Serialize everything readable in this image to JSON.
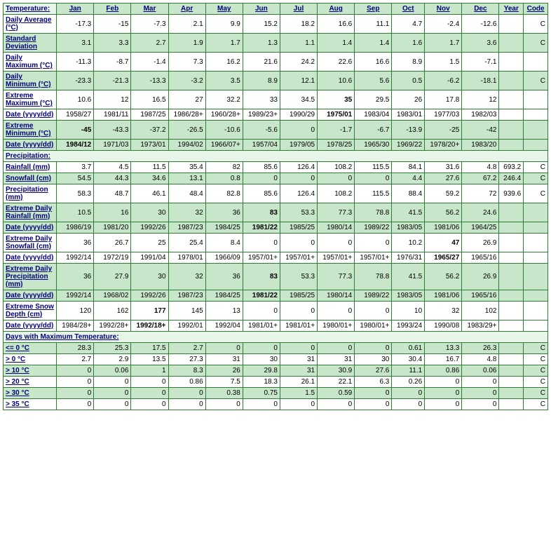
{
  "colors": {
    "border": "#2e7d32",
    "green_bg": "#c8e6c9",
    "light_green": "#e8f5e9",
    "navy": "#000080",
    "purple": "#800080"
  },
  "headers": [
    "Jan",
    "Feb",
    "Mar",
    "Apr",
    "May",
    "Jun",
    "Jul",
    "Aug",
    "Sep",
    "Oct",
    "Nov",
    "Dec",
    "Year",
    "Code"
  ],
  "section_temp": "Temperature:",
  "section_precip": "Precipitation:",
  "section_maxtemp": "Days with Maximum Temperature:",
  "rows": [
    {
      "key": "r0",
      "label": "Daily Average (°C)",
      "cls": "whiterow",
      "vals": [
        "-17.3",
        "-15",
        "-7.3",
        "2.1",
        "9.9",
        "15.2",
        "18.2",
        "16.6",
        "11.1",
        "4.7",
        "-2.4",
        "-12.6",
        "",
        "C"
      ]
    },
    {
      "key": "r1",
      "label": "Standard Deviation",
      "cls": "greenrow",
      "vals": [
        "3.1",
        "3.3",
        "2.7",
        "1.9",
        "1.7",
        "1.3",
        "1.1",
        "1.4",
        "1.4",
        "1.6",
        "1.7",
        "3.6",
        "",
        "C"
      ]
    },
    {
      "key": "r2",
      "label": "Daily Maximum (°C)",
      "cls": "whiterow",
      "vals": [
        "-11.3",
        "-8.7",
        "-1.4",
        "7.3",
        "16.2",
        "21.6",
        "24.2",
        "22.6",
        "16.6",
        "8.9",
        "1.5",
        "-7.1",
        "",
        ""
      ]
    },
    {
      "key": "r3",
      "label": "Daily Minimum (°C)",
      "cls": "greenrow",
      "vals": [
        "-23.3",
        "-21.3",
        "-13.3",
        "-3.2",
        "3.5",
        "8.9",
        "12.1",
        "10.6",
        "5.6",
        "0.5",
        "-6.2",
        "-18.1",
        "",
        "C"
      ]
    },
    {
      "key": "r4",
      "label": "Extreme Maximum (°C)",
      "cls": "whiterow",
      "vals": [
        "10.6",
        "12",
        "16.5",
        "27",
        "32.2",
        "33",
        "34.5",
        "35",
        "29.5",
        "26",
        "17.8",
        "12",
        "",
        ""
      ],
      "bold": [
        7
      ]
    },
    {
      "key": "r5",
      "label": "Date (yyyy/dd)",
      "cls": "whiterow",
      "vals": [
        "1958/27",
        "1981/11",
        "1987/25",
        "1986/28+",
        "1960/28+",
        "1989/23+",
        "1990/29",
        "1975/01",
        "1983/04",
        "1983/01",
        "1977/03",
        "1982/03",
        "",
        ""
      ],
      "bold": [
        7
      ]
    },
    {
      "key": "r6",
      "label": "Extreme Minimum (°C)",
      "cls": "greenrow",
      "vals": [
        "-45",
        "-43.3",
        "-37.2",
        "-26.5",
        "-10.6",
        "-5.6",
        "0",
        "-1.7",
        "-6.7",
        "-13.9",
        "-25",
        "-42",
        "",
        ""
      ],
      "bold": [
        0
      ]
    },
    {
      "key": "r7",
      "label": "Date (yyyy/dd)",
      "cls": "greenrow",
      "vals": [
        "1984/12",
        "1971/03",
        "1973/01",
        "1994/02",
        "1966/07+",
        "1957/04",
        "1979/05",
        "1978/25",
        "1965/30",
        "1969/22",
        "1978/20+",
        "1983/20",
        "",
        ""
      ],
      "bold": [
        0
      ]
    }
  ],
  "precip_rows": [
    {
      "key": "p0",
      "label": "Rainfall (mm)",
      "cls": "whiterow",
      "vals": [
        "3.7",
        "4.5",
        "11.5",
        "35.4",
        "82",
        "85.6",
        "126.4",
        "108.2",
        "115.5",
        "84.1",
        "31.6",
        "4.8",
        "693.2",
        "C"
      ]
    },
    {
      "key": "p1",
      "label": "Snowfall (cm)",
      "cls": "greenrow",
      "vals": [
        "54.5",
        "44.3",
        "34.6",
        "13.1",
        "0.8",
        "0",
        "0",
        "0",
        "0",
        "4.4",
        "27.6",
        "67.2",
        "246.4",
        "C"
      ]
    },
    {
      "key": "p2",
      "label": "Precipitation (mm)",
      "cls": "whiterow",
      "vals": [
        "58.3",
        "48.7",
        "46.1",
        "48.4",
        "82.8",
        "85.6",
        "126.4",
        "108.2",
        "115.5",
        "88.4",
        "59.2",
        "72",
        "939.6",
        "C"
      ]
    },
    {
      "key": "p3",
      "label": "Extreme Daily Rainfall (mm)",
      "cls": "greenrow",
      "vals": [
        "10.5",
        "16",
        "30",
        "32",
        "36",
        "83",
        "53.3",
        "77.3",
        "78.8",
        "41.5",
        "56.2",
        "24.6",
        "",
        ""
      ],
      "bold": [
        5
      ]
    },
    {
      "key": "p4",
      "label": "Date (yyyy/dd)",
      "cls": "greenrow",
      "vals": [
        "1986/19",
        "1981/20",
        "1992/26",
        "1987/23",
        "1984/25",
        "1981/22",
        "1985/25",
        "1980/14",
        "1989/22",
        "1983/05",
        "1981/06",
        "1964/25",
        "",
        ""
      ],
      "bold": [
        5
      ]
    },
    {
      "key": "p5",
      "label": "Extreme Daily Snowfall (cm)",
      "cls": "whiterow",
      "vals": [
        "36",
        "26.7",
        "25",
        "25.4",
        "8.4",
        "0",
        "0",
        "0",
        "0",
        "10.2",
        "47",
        "26.9",
        "",
        ""
      ],
      "bold": [
        10
      ]
    },
    {
      "key": "p6",
      "label": "Date (yyyy/dd)",
      "cls": "whiterow",
      "vals": [
        "1992/14",
        "1972/19",
        "1991/04",
        "1978/01",
        "1966/09",
        "1957/01+",
        "1957/01+",
        "1957/01+",
        "1957/01+",
        "1976/31",
        "1965/27",
        "1965/16",
        "",
        ""
      ],
      "bold": [
        10
      ]
    },
    {
      "key": "p7",
      "label": "Extreme Daily Precipitation (mm)",
      "cls": "greenrow",
      "vals": [
        "36",
        "27.9",
        "30",
        "32",
        "36",
        "83",
        "53.3",
        "77.3",
        "78.8",
        "41.5",
        "56.2",
        "26.9",
        "",
        ""
      ],
      "bold": [
        5
      ]
    },
    {
      "key": "p8",
      "label": "Date (yyyy/dd)",
      "cls": "greenrow",
      "vals": [
        "1992/14",
        "1968/02",
        "1992/26",
        "1987/23",
        "1984/25",
        "1981/22",
        "1985/25",
        "1980/14",
        "1989/22",
        "1983/05",
        "1981/06",
        "1965/16",
        "",
        ""
      ],
      "bold": [
        5
      ]
    },
    {
      "key": "p9",
      "label": "Extreme Snow Depth (cm)",
      "cls": "whiterow",
      "vals": [
        "120",
        "162",
        "177",
        "145",
        "13",
        "0",
        "0",
        "0",
        "0",
        "10",
        "32",
        "102",
        "",
        ""
      ],
      "bold": [
        2
      ]
    },
    {
      "key": "p10",
      "label": "Date (yyyy/dd)",
      "cls": "whiterow",
      "vals": [
        "1984/28+",
        "1992/28+",
        "1992/18+",
        "1992/01",
        "1992/04",
        "1981/01+",
        "1981/01+",
        "1980/01+",
        "1980/01+",
        "1993/24",
        "1990/08",
        "1983/29+",
        "",
        ""
      ],
      "bold": [
        2
      ]
    }
  ],
  "maxtemp_rows": [
    {
      "key": "m0",
      "label": "<= 0 °C",
      "cls": "greenrow",
      "vals": [
        "28.3",
        "25.3",
        "17.5",
        "2.7",
        "0",
        "0",
        "0",
        "0",
        "0",
        "0.61",
        "13.3",
        "26.3",
        "",
        "C"
      ]
    },
    {
      "key": "m1",
      "label": "> 0 °C",
      "cls": "whiterow",
      "vals": [
        "2.7",
        "2.9",
        "13.5",
        "27.3",
        "31",
        "30",
        "31",
        "31",
        "30",
        "30.4",
        "16.7",
        "4.8",
        "",
        "C"
      ]
    },
    {
      "key": "m2",
      "label": "> 10 °C",
      "cls": "greenrow",
      "vals": [
        "0",
        "0.06",
        "1",
        "8.3",
        "26",
        "29.8",
        "31",
        "30.9",
        "27.6",
        "11.1",
        "0.86",
        "0.06",
        "",
        "C"
      ]
    },
    {
      "key": "m3",
      "label": "> 20 °C",
      "cls": "whiterow",
      "vals": [
        "0",
        "0",
        "0",
        "0.86",
        "7.5",
        "18.3",
        "26.1",
        "22.1",
        "6.3",
        "0.26",
        "0",
        "0",
        "",
        "C"
      ]
    },
    {
      "key": "m4",
      "label": "> 30 °C",
      "cls": "greenrow",
      "vals": [
        "0",
        "0",
        "0",
        "0",
        "0.38",
        "0.75",
        "1.5",
        "0.59",
        "0",
        "0",
        "0",
        "0",
        "",
        "C"
      ]
    },
    {
      "key": "m5",
      "label": "> 35 °C",
      "cls": "whiterow",
      "vals": [
        "0",
        "0",
        "0",
        "0",
        "0",
        "0",
        "0",
        "0",
        "0",
        "0",
        "0",
        "0",
        "",
        "C"
      ]
    }
  ]
}
